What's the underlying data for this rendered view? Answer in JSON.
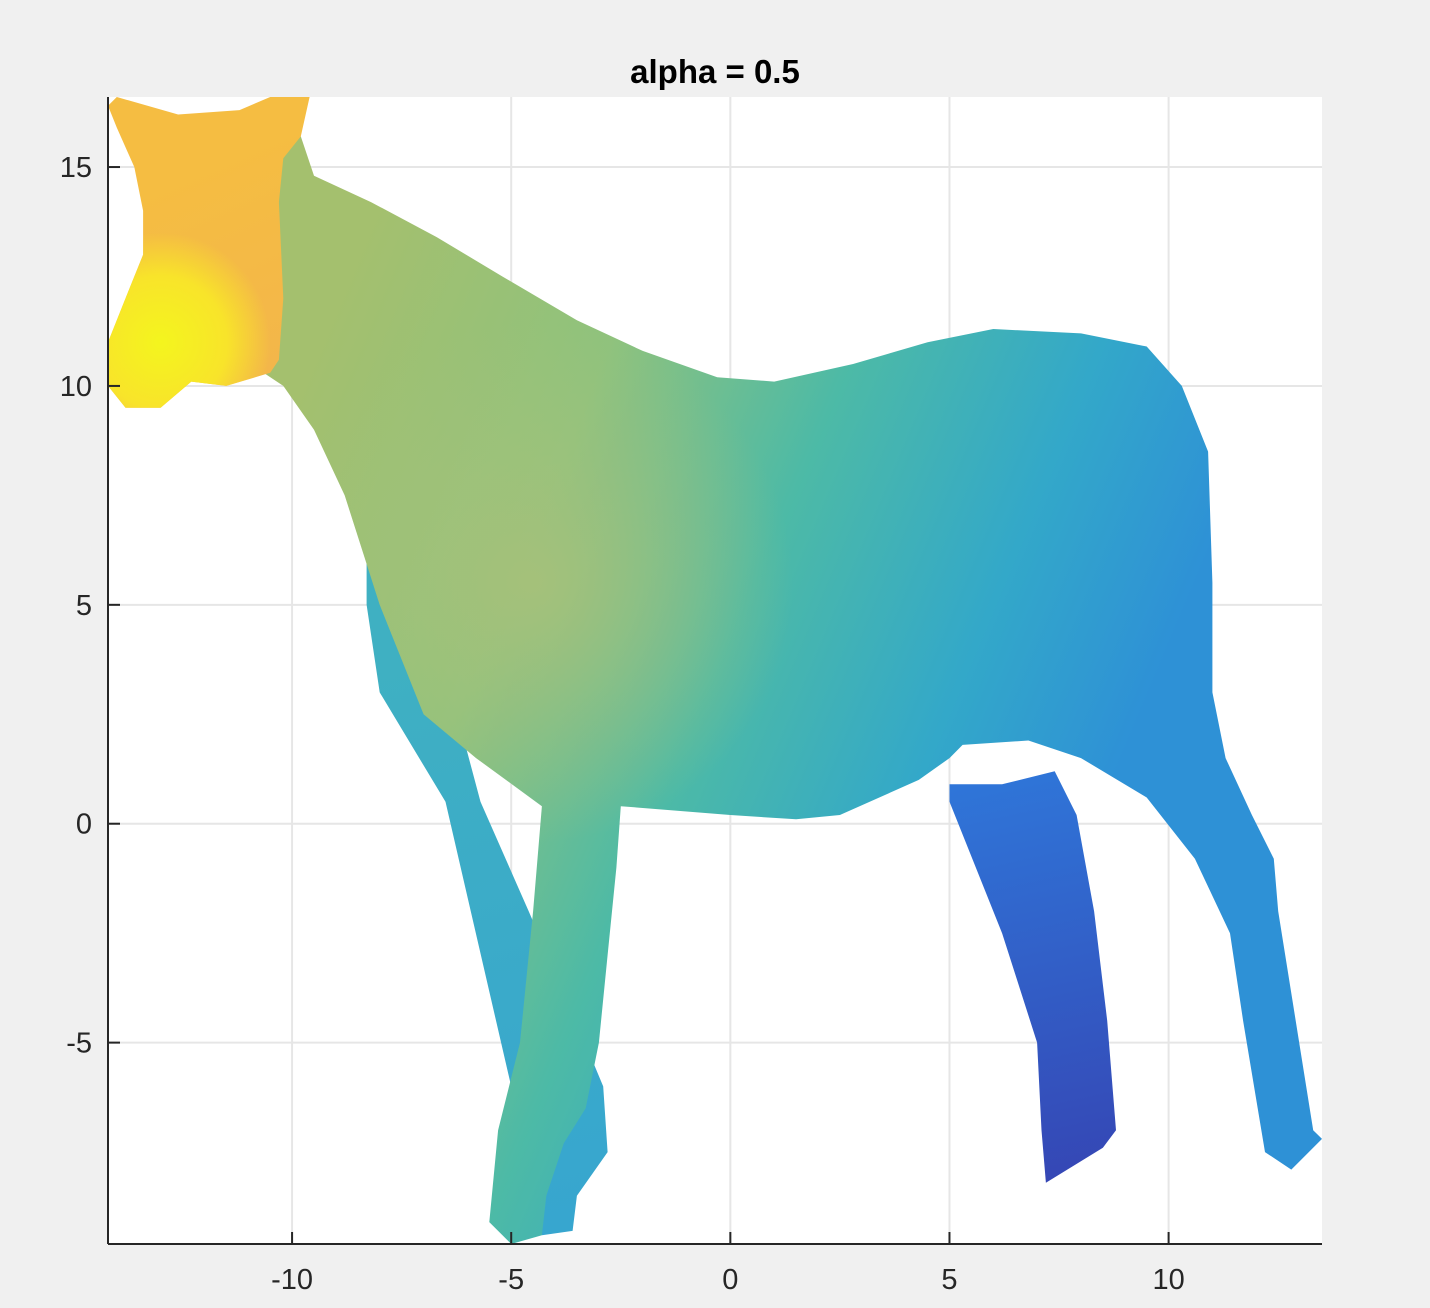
{
  "chart_data": {
    "type": "surface",
    "title": "alpha = 0.5",
    "xlabel": "",
    "ylabel": "",
    "xlim": [
      -14.2,
      13.5
    ],
    "ylim": [
      -9.6,
      16.6
    ],
    "xticks": [
      -10,
      -5,
      0,
      5,
      10
    ],
    "xtick_labels": [
      "-10",
      "-5",
      "0",
      "5",
      "10"
    ],
    "yticks": [
      -5,
      0,
      5,
      10,
      15
    ],
    "ytick_labels": [
      "-5",
      "0",
      "5",
      "10",
      "15"
    ],
    "grid": true,
    "colormap": "parula",
    "colors": {
      "figure_bg": "#f0f0f0",
      "axes_bg": "#ffffff",
      "grid": "#e6e6e6",
      "axis": "#262626"
    },
    "shapes": {
      "far_hind_leg": [
        [
          5.0,
          0.9
        ],
        [
          6.2,
          0.9
        ],
        [
          7.4,
          1.2
        ],
        [
          7.9,
          0.2
        ],
        [
          8.3,
          -2.0
        ],
        [
          8.6,
          -4.5
        ],
        [
          8.8,
          -7.0
        ],
        [
          8.5,
          -7.4
        ],
        [
          7.2,
          -8.2
        ],
        [
          7.1,
          -7.0
        ],
        [
          7.0,
          -5.0
        ],
        [
          6.2,
          -2.5
        ],
        [
          5.0,
          0.5
        ]
      ],
      "far_front_leg": [
        [
          -8.3,
          6.5
        ],
        [
          -6.5,
          3.5
        ],
        [
          -5.7,
          0.5
        ],
        [
          -4.6,
          -2.0
        ],
        [
          -3.4,
          -4.8
        ],
        [
          -2.9,
          -6.0
        ],
        [
          -2.8,
          -7.5
        ],
        [
          -3.5,
          -8.5
        ],
        [
          -3.6,
          -9.3
        ],
        [
          -4.3,
          -9.4
        ],
        [
          -4.5,
          -8.5
        ],
        [
          -5.0,
          -6.0
        ],
        [
          -6.5,
          0.5
        ],
        [
          -8.0,
          3.0
        ],
        [
          -8.3,
          5.0
        ]
      ],
      "body": [
        [
          -9.8,
          15.7
        ],
        [
          -9.5,
          14.8
        ],
        [
          -8.2,
          14.2
        ],
        [
          -6.7,
          13.4
        ],
        [
          -5.2,
          12.5
        ],
        [
          -3.5,
          11.5
        ],
        [
          -2.0,
          10.8
        ],
        [
          -0.3,
          10.2
        ],
        [
          1.0,
          10.1
        ],
        [
          2.8,
          10.5
        ],
        [
          4.5,
          11.0
        ],
        [
          6.0,
          11.3
        ],
        [
          8.0,
          11.2
        ],
        [
          9.5,
          10.9
        ],
        [
          10.3,
          10.0
        ],
        [
          10.9,
          8.5
        ],
        [
          11.0,
          5.5
        ],
        [
          11.0,
          3.0
        ],
        [
          11.3,
          1.5
        ],
        [
          11.9,
          0.2
        ],
        [
          12.4,
          -0.8
        ],
        [
          12.5,
          -2.0
        ],
        [
          12.9,
          -4.5
        ],
        [
          13.3,
          -7.0
        ],
        [
          13.5,
          -7.2
        ],
        [
          12.8,
          -7.9
        ],
        [
          12.2,
          -7.5
        ],
        [
          11.7,
          -4.5
        ],
        [
          11.4,
          -2.5
        ],
        [
          10.6,
          -0.8
        ],
        [
          9.5,
          0.6
        ],
        [
          8.0,
          1.5
        ],
        [
          6.8,
          1.9
        ],
        [
          5.3,
          1.8
        ],
        [
          5.0,
          1.5
        ],
        [
          4.3,
          1.0
        ],
        [
          2.5,
          0.2
        ],
        [
          1.5,
          0.1
        ],
        [
          0.0,
          0.2
        ],
        [
          -2.5,
          0.4
        ],
        [
          -2.6,
          -1.0
        ],
        [
          -2.8,
          -3.0
        ],
        [
          -3.0,
          -5.0
        ],
        [
          -3.3,
          -6.5
        ],
        [
          -3.8,
          -7.3
        ],
        [
          -4.2,
          -8.5
        ],
        [
          -4.3,
          -9.4
        ],
        [
          -5.0,
          -9.6
        ],
        [
          -5.5,
          -9.1
        ],
        [
          -5.3,
          -7.0
        ],
        [
          -4.8,
          -5.0
        ],
        [
          -4.5,
          -2.0
        ],
        [
          -4.3,
          0.4
        ],
        [
          -5.8,
          1.5
        ],
        [
          -7.0,
          2.5
        ],
        [
          -8.0,
          5.0
        ],
        [
          -8.8,
          7.5
        ],
        [
          -9.5,
          9.0
        ],
        [
          -10.2,
          10.0
        ],
        [
          -10.8,
          10.4
        ],
        [
          -11.0,
          11.0
        ],
        [
          -11.1,
          12.5
        ],
        [
          -11.0,
          14.5
        ],
        [
          -10.5,
          15.3
        ],
        [
          -10.2,
          15.6
        ]
      ],
      "head": [
        [
          -14.0,
          16.6
        ],
        [
          -12.6,
          16.2
        ],
        [
          -11.2,
          16.3
        ],
        [
          -10.5,
          16.6
        ],
        [
          -9.6,
          16.6
        ],
        [
          -9.8,
          15.7
        ],
        [
          -10.2,
          15.2
        ],
        [
          -10.3,
          14.2
        ],
        [
          -10.2,
          12.0
        ],
        [
          -10.3,
          10.6
        ],
        [
          -10.5,
          10.3
        ],
        [
          -11.5,
          10.0
        ],
        [
          -12.3,
          10.1
        ],
        [
          -13.0,
          9.5
        ],
        [
          -13.8,
          9.5
        ],
        [
          -14.2,
          10.0
        ],
        [
          -14.2,
          11.0
        ],
        [
          -13.8,
          12.0
        ],
        [
          -13.4,
          13.0
        ],
        [
          -13.4,
          14.0
        ],
        [
          -13.6,
          15.0
        ],
        [
          -14.0,
          15.9
        ],
        [
          -14.2,
          16.4
        ]
      ]
    }
  }
}
